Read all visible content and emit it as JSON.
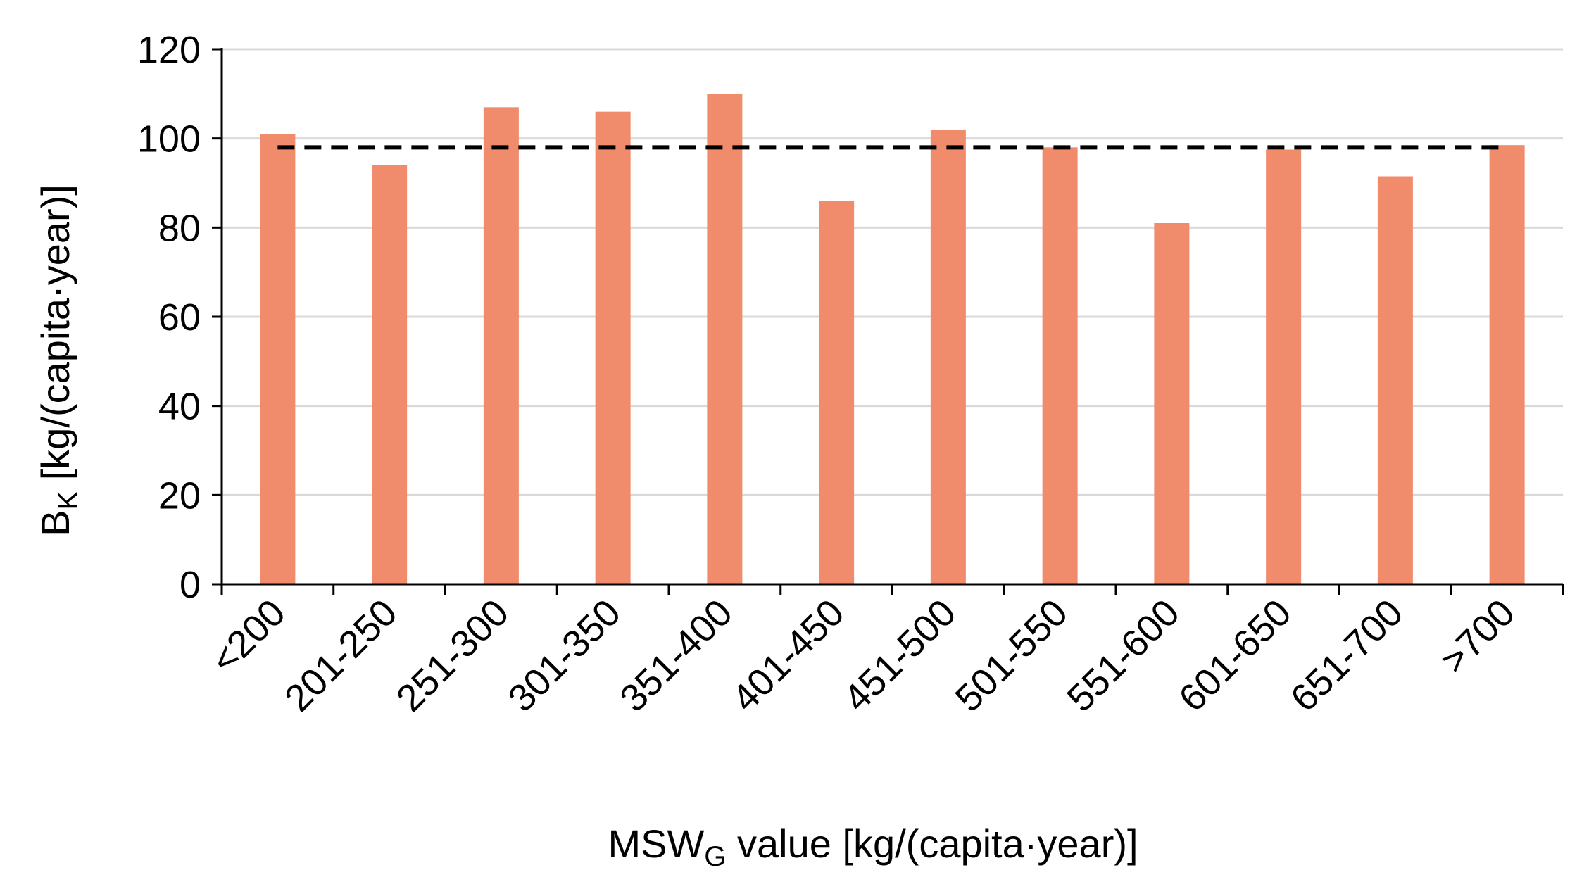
{
  "chart_data": {
    "type": "bar",
    "categories": [
      "<200",
      "201-250",
      "251-300",
      "301-350",
      "351-400",
      "401-450",
      "451-500",
      "501-550",
      "551-600",
      "601-650",
      "651-700",
      ">700"
    ],
    "values": [
      101,
      94,
      107,
      106,
      110,
      86,
      102,
      98,
      81,
      97.5,
      91.5,
      98.5
    ],
    "reference_line": {
      "value": 98,
      "style": "dashed",
      "color": "#000000"
    },
    "ylim": [
      0,
      120
    ],
    "yticks": [
      0,
      20,
      40,
      60,
      80,
      100,
      120
    ],
    "grid": true,
    "legend": "none",
    "xlabel": {
      "main": "MSW",
      "sub": "G",
      "rest": " value [kg/(capita·year)]"
    },
    "ylabel": {
      "main": "B",
      "sub": "K",
      "rest": "  [kg/(capita·year)]"
    },
    "colors": {
      "bar": "#f08b6c",
      "grid": "#d9d9d9",
      "axis": "#000000"
    }
  }
}
